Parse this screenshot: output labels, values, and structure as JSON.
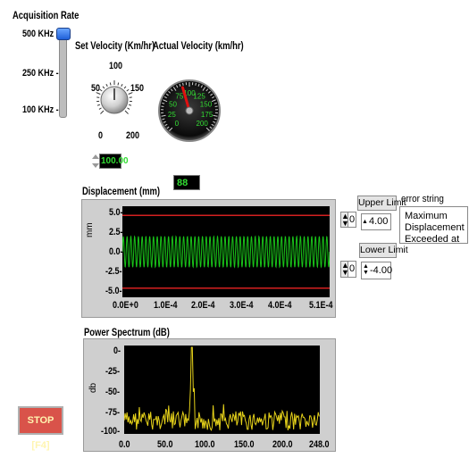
{
  "acquisition_rate": {
    "label": "Acquisition Rate",
    "ticks": [
      "500 KHz",
      "250 KHz",
      "100 KHz"
    ],
    "selected": "500 KHz"
  },
  "set_velocity": {
    "label": "Set Velocity (Km/hr)",
    "ticks": [
      "0",
      "50",
      "100",
      "150",
      "200"
    ],
    "value": "100.00",
    "knob_value": 100
  },
  "actual_velocity": {
    "label": "Actual Velocity (km/hr)",
    "ticks": [
      "0",
      "25",
      "50",
      "75",
      "100",
      "125",
      "150",
      "175",
      "200"
    ],
    "value": "88",
    "needle_value": 88
  },
  "displacement": {
    "label": "Displacement (mm)",
    "ylabel": "mm",
    "y_ticks": [
      "5.0",
      "2.5",
      "0.0",
      "-2.5",
      "-5.0"
    ],
    "x_ticks": [
      "0.0E+0",
      "1.0E-4",
      "2.0E-4",
      "3.0E-4",
      "4.0E-4",
      "5.1E-4"
    ]
  },
  "upper_limit": {
    "label": "Upper Limit",
    "index": "0",
    "value": "4.00"
  },
  "lower_limit": {
    "label": "Lower Limit",
    "index": "0",
    "value": "-4.00"
  },
  "error_string": {
    "label": "error string",
    "lines": [
      "Maximum",
      "Displacement",
      "Exceeded at"
    ]
  },
  "power_spectrum": {
    "label": "Power Spectrum (dB)",
    "ylabel": "db",
    "y_ticks": [
      "0",
      "-25",
      "-50",
      "-75",
      "-100"
    ],
    "x_ticks": [
      "0.0",
      "50.0",
      "100.0",
      "150.0",
      "200.0",
      "248.0"
    ]
  },
  "stop_button": {
    "label": "STOP [F4]"
  },
  "colors": {
    "plot_bg": "#000000",
    "displacement_trace": "#19c419",
    "limit_lines": "#d42020",
    "spectrum_trace": "#e6d21a",
    "stop_bg": "#d9534a"
  },
  "chart_data": [
    {
      "type": "line",
      "title": "Displacement (mm)",
      "ylabel": "mm",
      "xlim": [
        0,
        0.00051
      ],
      "ylim": [
        -5,
        5
      ],
      "series": [
        {
          "kind": "sine",
          "amplitude": 1.7,
          "cycles": 55
        },
        {
          "kind": "hline",
          "y": 4.0
        },
        {
          "kind": "hline",
          "y": -4.0
        }
      ]
    },
    {
      "type": "line",
      "title": "Power Spectrum (dB)",
      "ylabel": "db",
      "xlim": [
        0,
        248
      ],
      "ylim": [
        -100,
        0
      ],
      "peak": {
        "x": 86,
        "y": -2
      },
      "noise_floor": [
        -100,
        -72
      ]
    }
  ]
}
